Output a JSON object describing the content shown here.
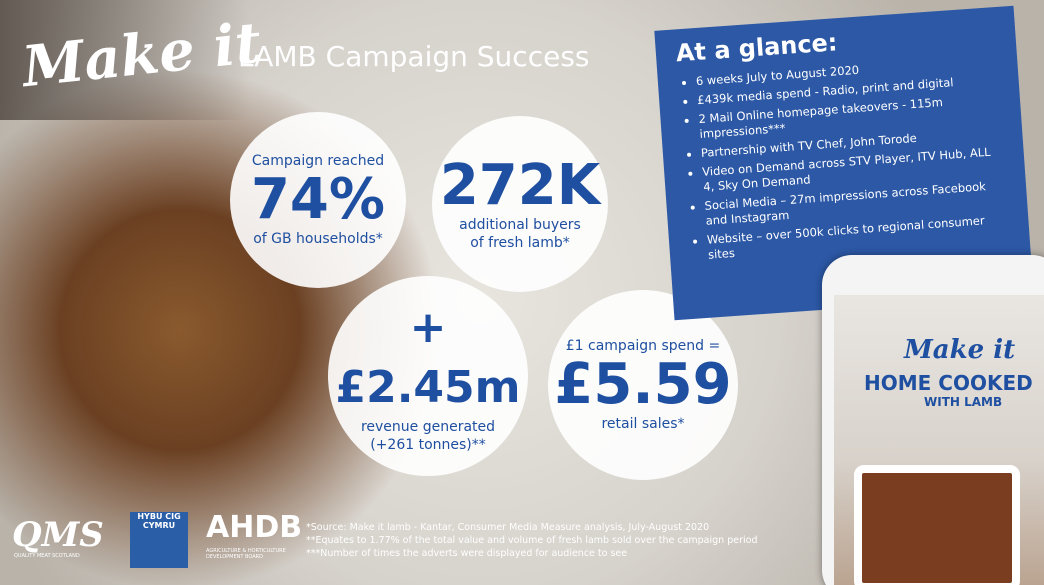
{
  "header": {
    "logo": "Make it",
    "title": "LAMB Campaign Success"
  },
  "stats": [
    {
      "top": [
        "Campaign reached"
      ],
      "figure": "74%",
      "bottom": [
        "of GB households*"
      ]
    },
    {
      "top": [],
      "figure": "272K",
      "bottom": [
        "additional buyers",
        "of fresh lamb*"
      ]
    },
    {
      "top": [],
      "figure": "+£2.45m",
      "bottom": [
        "revenue generated",
        "(+261 tonnes)**"
      ]
    },
    {
      "top": [
        "£1 campaign spend ="
      ],
      "figure": "£5.59",
      "bottom": [
        "retail sales*"
      ]
    }
  ],
  "glance": {
    "title": "At a glance:",
    "items": [
      "6 weeks July to August 2020",
      "£439k media spend - Radio, print and digital",
      "2 Mail Online homepage takeovers - 115m impressions***",
      "Partnership with TV Chef, John Torode",
      "Video on Demand across STV Player, ITV Hub, ALL 4, Sky On Demand",
      "Social Media – 27m impressions across Facebook and Instagram",
      "Website – over 500k clicks to regional consumer sites"
    ]
  },
  "phone": {
    "logo": "Make it",
    "line1": "HOME COOKED",
    "line2": "WITH LAMB"
  },
  "logos": {
    "qms": "QMS",
    "qms_sub": "QUALITY MEAT SCOTLAND",
    "hcc": "HYBU CIG CYMRU",
    "ahdb": "AHDB",
    "ahdb_sub": "AGRICULTURE & HORTICULTURE DEVELOPMENT BOARD"
  },
  "footnotes": [
    "*Source: Make it lamb - Kantar, Consumer Media Measure analysis, July-August 2020",
    "**Equates to 1.77% of the total value and volume of fresh lamb sold over the campaign period",
    "***Number of times the adverts were displayed for audience to see"
  ]
}
